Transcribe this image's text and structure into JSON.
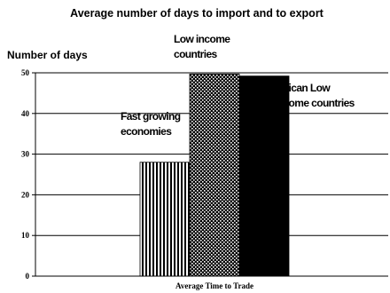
{
  "chart_data": {
    "type": "bar",
    "title": "Average number of days to import and to export",
    "ylabel": "Number of days",
    "xlabel": "Average Time to Trade",
    "ylim": [
      0,
      50
    ],
    "yticks": [
      0,
      10,
      20,
      30,
      40,
      50
    ],
    "grid": true,
    "series": [
      {
        "name": "Fast growing economies",
        "value": 28,
        "pattern": "vertical-stripes"
      },
      {
        "name": "Low income countries",
        "value": 49.7,
        "pattern": "dots"
      },
      {
        "name": "African Low income countries",
        "value": 49.2,
        "pattern": "solid-black"
      }
    ],
    "annotations": [
      {
        "lines": [
          "Fast growing",
          "economies"
        ]
      },
      {
        "lines": [
          "Low income",
          "countries"
        ]
      },
      {
        "lines": [
          "African Low",
          "income countries"
        ]
      }
    ]
  }
}
